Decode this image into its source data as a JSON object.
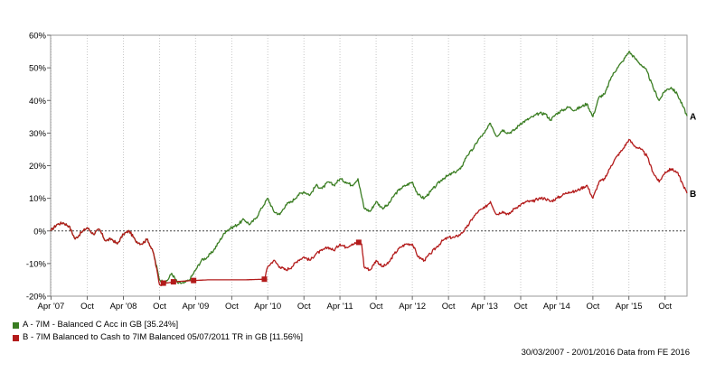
{
  "chart_data": {
    "type": "line",
    "xlabel": "",
    "ylabel": "",
    "x_ticks": [
      "Apr '07",
      "Oct",
      "Apr '08",
      "Oct",
      "Apr '09",
      "Oct",
      "Apr '10",
      "Oct",
      "Apr '11",
      "Oct",
      "Apr '12",
      "Oct",
      "Apr '13",
      "Oct",
      "Apr '14",
      "Oct",
      "Apr '15",
      "Oct"
    ],
    "x_tick_dates": [
      "2007-04-01",
      "2007-10-01",
      "2008-04-01",
      "2008-10-01",
      "2009-04-01",
      "2009-10-01",
      "2010-04-01",
      "2010-10-01",
      "2011-04-01",
      "2011-10-01",
      "2012-04-01",
      "2012-10-01",
      "2013-04-01",
      "2013-10-01",
      "2014-04-01",
      "2014-10-01",
      "2015-04-01",
      "2015-10-01"
    ],
    "xlim": [
      "2007-03-30",
      "2016-01-20"
    ],
    "ylim": [
      -20,
      60
    ],
    "y_ticks": [
      -20,
      -10,
      0,
      10,
      20,
      30,
      40,
      50,
      60
    ],
    "y_tick_labels": [
      "-20%",
      "-10%",
      "0%",
      "10%",
      "20%",
      "30%",
      "40%",
      "50%",
      "60%"
    ],
    "grid": "vertical dotted",
    "zero_line": "dashed",
    "legend_position": "bottom-left",
    "series": [
      {
        "name": "A - 7IM - Balanced C Acc in GB [35.24%]",
        "end_label": "A",
        "color": "#3a7d22",
        "points": [
          [
            "2007-03-30",
            0
          ],
          [
            "2007-05-01",
            2
          ],
          [
            "2007-06-01",
            2.5
          ],
          [
            "2007-07-01",
            1.5
          ],
          [
            "2007-08-01",
            -2.5
          ],
          [
            "2007-09-01",
            -0.5
          ],
          [
            "2007-10-01",
            1
          ],
          [
            "2007-11-01",
            -1
          ],
          [
            "2007-12-01",
            0.5
          ],
          [
            "2008-01-01",
            -3
          ],
          [
            "2008-02-01",
            -2.5
          ],
          [
            "2008-03-01",
            -4
          ],
          [
            "2008-04-01",
            -1
          ],
          [
            "2008-05-01",
            0
          ],
          [
            "2008-06-01",
            -3
          ],
          [
            "2008-07-01",
            -4
          ],
          [
            "2008-08-01",
            -2.5
          ],
          [
            "2008-09-01",
            -7
          ],
          [
            "2008-10-01",
            -15
          ],
          [
            "2008-11-01",
            -16
          ],
          [
            "2008-12-01",
            -13
          ],
          [
            "2009-01-01",
            -16
          ],
          [
            "2009-02-01",
            -16
          ],
          [
            "2009-03-01",
            -15
          ],
          [
            "2009-04-01",
            -12
          ],
          [
            "2009-05-01",
            -9
          ],
          [
            "2009-06-01",
            -8
          ],
          [
            "2009-07-01",
            -6
          ],
          [
            "2009-08-01",
            -3
          ],
          [
            "2009-09-01",
            0
          ],
          [
            "2009-10-01",
            1
          ],
          [
            "2009-11-01",
            2
          ],
          [
            "2009-12-01",
            3.5
          ],
          [
            "2010-01-01",
            2
          ],
          [
            "2010-02-01",
            4
          ],
          [
            "2010-03-01",
            7
          ],
          [
            "2010-04-01",
            10
          ],
          [
            "2010-05-01",
            6
          ],
          [
            "2010-06-01",
            5
          ],
          [
            "2010-07-01",
            8
          ],
          [
            "2010-08-01",
            9
          ],
          [
            "2010-09-01",
            11
          ],
          [
            "2010-10-01",
            12
          ],
          [
            "2010-11-01",
            11
          ],
          [
            "2010-12-01",
            14
          ],
          [
            "2011-01-01",
            13
          ],
          [
            "2011-02-01",
            15
          ],
          [
            "2011-03-01",
            14
          ],
          [
            "2011-04-01",
            16
          ],
          [
            "2011-05-01",
            15
          ],
          [
            "2011-06-01",
            14
          ],
          [
            "2011-07-01",
            16
          ],
          [
            "2011-08-01",
            7
          ],
          [
            "2011-09-01",
            6
          ],
          [
            "2011-10-01",
            9
          ],
          [
            "2011-11-01",
            7
          ],
          [
            "2011-12-01",
            8
          ],
          [
            "2012-01-01",
            11
          ],
          [
            "2012-02-01",
            13
          ],
          [
            "2012-03-01",
            14
          ],
          [
            "2012-04-01",
            15
          ],
          [
            "2012-05-01",
            11
          ],
          [
            "2012-06-01",
            10
          ],
          [
            "2012-07-01",
            12
          ],
          [
            "2012-08-01",
            14
          ],
          [
            "2012-09-01",
            16
          ],
          [
            "2012-10-01",
            17
          ],
          [
            "2012-11-01",
            18
          ],
          [
            "2012-12-01",
            19
          ],
          [
            "2013-01-01",
            23
          ],
          [
            "2013-02-01",
            25
          ],
          [
            "2013-03-01",
            28
          ],
          [
            "2013-04-01",
            30
          ],
          [
            "2013-05-01",
            33
          ],
          [
            "2013-06-01",
            29
          ],
          [
            "2013-07-01",
            31
          ],
          [
            "2013-08-01",
            30
          ],
          [
            "2013-09-01",
            31
          ],
          [
            "2013-10-01",
            33
          ],
          [
            "2013-11-01",
            34
          ],
          [
            "2013-12-01",
            35
          ],
          [
            "2014-01-01",
            36
          ],
          [
            "2014-02-01",
            36
          ],
          [
            "2014-03-01",
            34
          ],
          [
            "2014-04-01",
            36
          ],
          [
            "2014-05-01",
            37
          ],
          [
            "2014-06-01",
            38
          ],
          [
            "2014-07-01",
            37
          ],
          [
            "2014-08-01",
            38
          ],
          [
            "2014-09-01",
            39
          ],
          [
            "2014-10-01",
            35
          ],
          [
            "2014-11-01",
            41
          ],
          [
            "2014-12-01",
            42
          ],
          [
            "2015-01-01",
            47
          ],
          [
            "2015-02-01",
            50
          ],
          [
            "2015-03-01",
            52
          ],
          [
            "2015-04-01",
            55
          ],
          [
            "2015-05-01",
            53
          ],
          [
            "2015-06-01",
            51
          ],
          [
            "2015-07-01",
            49
          ],
          [
            "2015-08-01",
            44
          ],
          [
            "2015-09-01",
            40
          ],
          [
            "2015-10-01",
            43
          ],
          [
            "2015-11-01",
            44
          ],
          [
            "2015-12-01",
            42
          ],
          [
            "2016-01-01",
            38
          ],
          [
            "2016-01-20",
            35.24
          ]
        ]
      },
      {
        "name": "B - 7IM Balanced to Cash to 7IM Balanced 05/07/2011 TR in GB [11.56%]",
        "end_label": "B",
        "color": "#b31b1b",
        "points": [
          [
            "2007-03-30",
            0
          ],
          [
            "2007-05-01",
            2
          ],
          [
            "2007-06-01",
            2.5
          ],
          [
            "2007-07-01",
            1.5
          ],
          [
            "2007-08-01",
            -2.5
          ],
          [
            "2007-09-01",
            -0.5
          ],
          [
            "2007-10-01",
            1
          ],
          [
            "2007-11-01",
            -1
          ],
          [
            "2007-12-01",
            0.5
          ],
          [
            "2008-01-01",
            -3
          ],
          [
            "2008-02-01",
            -2.5
          ],
          [
            "2008-03-01",
            -4
          ],
          [
            "2008-04-01",
            -1
          ],
          [
            "2008-05-01",
            0
          ],
          [
            "2008-06-01",
            -3
          ],
          [
            "2008-07-01",
            -4
          ],
          [
            "2008-08-01",
            -2.5
          ],
          [
            "2008-09-01",
            -7
          ],
          [
            "2008-10-01",
            -16.5
          ],
          [
            "2008-11-01",
            -16
          ],
          [
            "2009-01-01",
            -15.5
          ],
          [
            "2009-03-22",
            -15.2
          ],
          [
            "2009-06-01",
            -15
          ],
          [
            "2009-12-01",
            -15
          ],
          [
            "2010-03-15",
            -14.8
          ],
          [
            "2010-04-01",
            -11
          ],
          [
            "2010-05-01",
            -9
          ],
          [
            "2010-06-01",
            -11
          ],
          [
            "2010-07-01",
            -12
          ],
          [
            "2010-08-01",
            -11
          ],
          [
            "2010-09-01",
            -9
          ],
          [
            "2010-10-01",
            -8
          ],
          [
            "2010-11-01",
            -9
          ],
          [
            "2010-12-01",
            -7
          ],
          [
            "2011-01-01",
            -6
          ],
          [
            "2011-02-01",
            -5
          ],
          [
            "2011-03-01",
            -6
          ],
          [
            "2011-04-01",
            -4
          ],
          [
            "2011-05-01",
            -5
          ],
          [
            "2011-06-01",
            -4
          ],
          [
            "2011-07-05",
            -3.5
          ],
          [
            "2011-07-20",
            -4
          ],
          [
            "2011-08-01",
            -11
          ],
          [
            "2011-09-01",
            -12
          ],
          [
            "2011-10-01",
            -9
          ],
          [
            "2011-11-01",
            -11
          ],
          [
            "2011-12-01",
            -10
          ],
          [
            "2012-01-01",
            -7
          ],
          [
            "2012-02-01",
            -5
          ],
          [
            "2012-03-01",
            -4
          ],
          [
            "2012-04-01",
            -4
          ],
          [
            "2012-05-01",
            -8
          ],
          [
            "2012-06-01",
            -9
          ],
          [
            "2012-07-01",
            -7
          ],
          [
            "2012-08-01",
            -5
          ],
          [
            "2012-09-01",
            -3
          ],
          [
            "2012-10-01",
            -2
          ],
          [
            "2012-11-01",
            -2
          ],
          [
            "2012-12-01",
            -1
          ],
          [
            "2013-01-01",
            1
          ],
          [
            "2013-02-01",
            4
          ],
          [
            "2013-03-01",
            6
          ],
          [
            "2013-04-01",
            7
          ],
          [
            "2013-05-01",
            9
          ],
          [
            "2013-06-01",
            5
          ],
          [
            "2013-07-01",
            6
          ],
          [
            "2013-08-01",
            5
          ],
          [
            "2013-09-01",
            7
          ],
          [
            "2013-10-01",
            8
          ],
          [
            "2013-11-01",
            9
          ],
          [
            "2013-12-01",
            9
          ],
          [
            "2014-01-01",
            10
          ],
          [
            "2014-02-01",
            10
          ],
          [
            "2014-03-01",
            9
          ],
          [
            "2014-04-01",
            10
          ],
          [
            "2014-05-01",
            11
          ],
          [
            "2014-06-01",
            12
          ],
          [
            "2014-07-01",
            12
          ],
          [
            "2014-08-01",
            13
          ],
          [
            "2014-09-01",
            14
          ],
          [
            "2014-10-01",
            10
          ],
          [
            "2014-11-01",
            15
          ],
          [
            "2014-12-01",
            16
          ],
          [
            "2015-01-01",
            20
          ],
          [
            "2015-02-01",
            23
          ],
          [
            "2015-03-01",
            25
          ],
          [
            "2015-04-01",
            28
          ],
          [
            "2015-05-01",
            26
          ],
          [
            "2015-06-01",
            25
          ],
          [
            "2015-07-01",
            23
          ],
          [
            "2015-08-01",
            18
          ],
          [
            "2015-09-01",
            15
          ],
          [
            "2015-10-01",
            18
          ],
          [
            "2015-11-01",
            19
          ],
          [
            "2015-12-01",
            18
          ],
          [
            "2016-01-01",
            14
          ],
          [
            "2016-01-20",
            11.56
          ]
        ],
        "markers": [
          [
            "2008-10-20",
            -16
          ],
          [
            "2008-12-10",
            -15.6
          ],
          [
            "2009-03-22",
            -15.2
          ],
          [
            "2010-03-15",
            -14.8
          ],
          [
            "2011-07-05",
            -3.5
          ]
        ]
      }
    ]
  },
  "legend": {
    "items": [
      {
        "label": "A - 7IM - Balanced C Acc in GB [35.24%]",
        "color": "#3a7d22"
      },
      {
        "label": "B - 7IM Balanced to Cash to 7IM Balanced 05/07/2011 TR in GB [11.56%]",
        "color": "#b31b1b"
      }
    ]
  },
  "footer": {
    "text": "30/03/2007 - 20/01/2016 Data from FE 2016"
  }
}
